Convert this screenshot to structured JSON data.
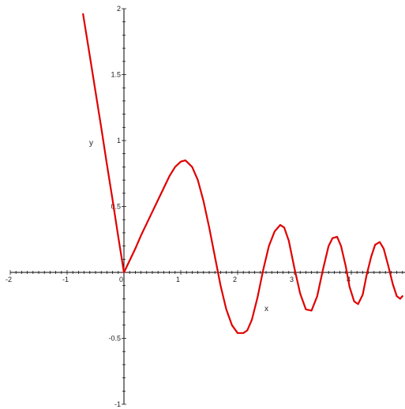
{
  "chart_data": {
    "type": "line",
    "xlabel": "x",
    "ylabel": "y",
    "xlim": [
      -2,
      4.9
    ],
    "ylim": [
      -1,
      2
    ],
    "x_ticks": [
      -2,
      -1,
      0,
      1,
      2,
      3,
      4
    ],
    "x_tick_labels": [
      "-2",
      "-1",
      "0",
      "1",
      "2",
      "3",
      "4"
    ],
    "y_ticks": [
      -1,
      -0.5,
      0.5,
      1,
      1.5,
      2
    ],
    "y_tick_labels": [
      "-1",
      "-0.5",
      "0.5",
      "1",
      "1.5",
      "2"
    ],
    "grid": false,
    "series": [
      {
        "color": "#e00000",
        "x": [
          -0.72,
          -0.6,
          -0.5,
          -0.4,
          -0.3,
          -0.2,
          -0.1,
          0,
          0.1,
          0.2,
          0.3,
          0.4,
          0.5,
          0.6,
          0.7,
          0.8,
          0.9,
          1.0,
          1.08,
          1.2,
          1.3,
          1.4,
          1.5,
          1.6,
          1.7,
          1.8,
          1.9,
          2.0,
          2.1,
          2.17,
          2.25,
          2.35,
          2.45,
          2.55,
          2.65,
          2.75,
          2.82,
          2.9,
          3.0,
          3.1,
          3.2,
          3.3,
          3.4,
          3.5,
          3.6,
          3.67,
          3.75,
          3.82,
          3.9,
          3.97,
          4.05,
          4.12,
          4.2,
          4.27,
          4.35,
          4.42,
          4.5,
          4.57,
          4.65,
          4.73,
          4.8,
          4.86,
          4.9
        ],
        "y": [
          1.96,
          1.64,
          1.37,
          1.1,
          0.82,
          0.55,
          0.27,
          0,
          0.09,
          0.18,
          0.28,
          0.37,
          0.46,
          0.55,
          0.64,
          0.73,
          0.8,
          0.84,
          0.85,
          0.8,
          0.7,
          0.54,
          0.34,
          0.12,
          -0.1,
          -0.28,
          -0.4,
          -0.46,
          -0.46,
          -0.44,
          -0.36,
          -0.19,
          0.02,
          0.2,
          0.31,
          0.36,
          0.34,
          0.24,
          0.03,
          -0.16,
          -0.28,
          -0.29,
          -0.18,
          0.02,
          0.2,
          0.26,
          0.27,
          0.2,
          0.05,
          -0.11,
          -0.22,
          -0.24,
          -0.17,
          -0.02,
          0.12,
          0.21,
          0.23,
          0.18,
          0.05,
          -0.09,
          -0.18,
          -0.2,
          -0.18
        ]
      }
    ]
  }
}
